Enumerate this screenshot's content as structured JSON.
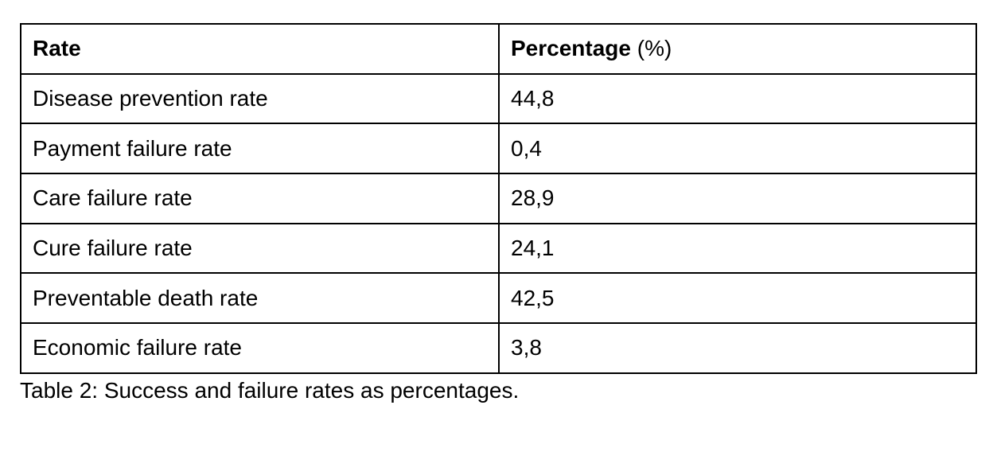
{
  "table": {
    "headers": {
      "rate": "Rate",
      "percentage_bold": "Percentage",
      "percentage_unit": "(%)"
    },
    "rows": [
      {
        "rate": "Disease prevention rate",
        "percentage": "44,8"
      },
      {
        "rate": "Payment failure rate",
        "percentage": "0,4"
      },
      {
        "rate": "Care failure rate",
        "percentage": "28,9"
      },
      {
        "rate": "Cure failure rate",
        "percentage": "24,1"
      },
      {
        "rate": "Preventable death rate",
        "percentage": "42,5"
      },
      {
        "rate": "Economic failure rate",
        "percentage": "3,8"
      }
    ]
  },
  "caption": "Table 2: Success and failure rates as percentages."
}
